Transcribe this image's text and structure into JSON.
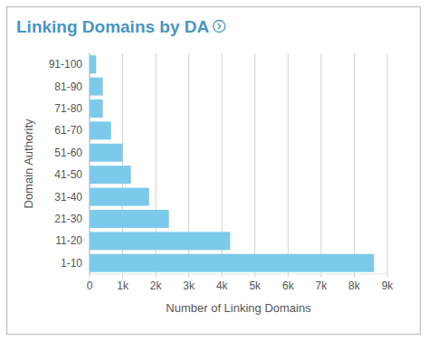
{
  "chart_data": {
    "type": "bar",
    "orientation": "horizontal",
    "title": "Linking Domains by DA",
    "x_label": "Number of Linking Domains",
    "y_label": "Domain Authority",
    "categories": [
      "91-100",
      "81-90",
      "71-80",
      "61-70",
      "51-60",
      "41-50",
      "31-40",
      "21-30",
      "11-20",
      "1-10"
    ],
    "values": [
      200,
      400,
      400,
      650,
      1000,
      1250,
      1800,
      2400,
      4250,
      8600
    ],
    "color": "#7ccaeb",
    "xlim": [
      0,
      9000
    ],
    "xticks": [
      0,
      {
        "value": 1000,
        "label": "1k"
      },
      {
        "value": 2000,
        "label": "2k"
      },
      {
        "value": 3000,
        "label": "3k"
      },
      {
        "value": 4000,
        "label": "4k"
      },
      {
        "value": 5000,
        "label": "5k"
      },
      {
        "value": 6000,
        "label": "6k"
      },
      {
        "value": 7000,
        "label": "7k"
      },
      {
        "value": 8000,
        "label": "8k"
      },
      {
        "value": 9000,
        "label": "9k"
      }
    ],
    "grid": true
  }
}
